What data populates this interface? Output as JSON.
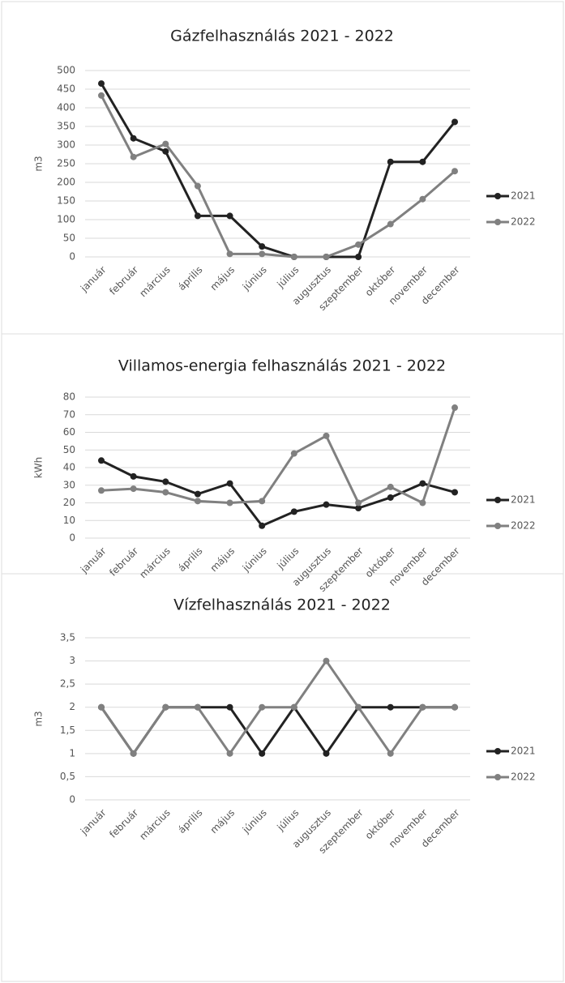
{
  "chart_data": [
    {
      "type": "line",
      "title": "Gázfelhasználás 2021 - 2022",
      "y_label": "m3",
      "categories": [
        "január",
        "február",
        "március",
        "április",
        "május",
        "június",
        "július",
        "augusztus",
        "szeptember",
        "október",
        "november",
        "december"
      ],
      "series": [
        {
          "name": "2021",
          "color": "#222222",
          "values": [
            465,
            318,
            283,
            110,
            110,
            28,
            0,
            0,
            0,
            255,
            255,
            362
          ]
        },
        {
          "name": "2022",
          "color": "#808080",
          "values": [
            433,
            268,
            303,
            190,
            8,
            8,
            0,
            0,
            33,
            88,
            155,
            230
          ]
        }
      ],
      "ylim": [
        0,
        500
      ],
      "yticks": [
        0,
        50,
        100,
        150,
        200,
        250,
        300,
        350,
        400,
        450,
        500
      ],
      "grid": true,
      "legend": "right"
    },
    {
      "type": "line",
      "title": "Villamos-energia felhasználás 2021 - 2022",
      "y_label": "kWh",
      "categories": [
        "január",
        "február",
        "március",
        "április",
        "május",
        "június",
        "július",
        "augusztus",
        "szeptember",
        "október",
        "november",
        "december"
      ],
      "series": [
        {
          "name": "2021",
          "color": "#222222",
          "values": [
            44,
            35,
            32,
            25,
            31,
            7,
            15,
            19,
            17,
            23,
            31,
            26
          ]
        },
        {
          "name": "2022",
          "color": "#808080",
          "values": [
            27,
            28,
            26,
            21,
            20,
            21,
            48,
            58,
            20,
            29,
            20,
            74
          ]
        }
      ],
      "ylim": [
        0,
        80
      ],
      "yticks": [
        0,
        10,
        20,
        30,
        40,
        50,
        60,
        70,
        80
      ],
      "grid": true,
      "legend": "right"
    },
    {
      "type": "line",
      "title": "Vízfelhasználás 2021 - 2022",
      "y_label": "m3",
      "categories": [
        "január",
        "február",
        "március",
        "április",
        "május",
        "június",
        "július",
        "augusztus",
        "szeptember",
        "október",
        "november",
        "december"
      ],
      "series": [
        {
          "name": "2021",
          "color": "#222222",
          "values": [
            2,
            1,
            2,
            2,
            2,
            1,
            2,
            1,
            2,
            2,
            2,
            2
          ]
        },
        {
          "name": "2022",
          "color": "#808080",
          "values": [
            2,
            1,
            2,
            2,
            1,
            2,
            2,
            3,
            2,
            1,
            2,
            2
          ]
        }
      ],
      "ylim": [
        0,
        3.5
      ],
      "yticks": [
        0,
        {
          "value": 0.5,
          "label": "0,5"
        },
        1,
        {
          "value": 1.5,
          "label": "1,5"
        },
        2,
        {
          "value": 2.5,
          "label": "2,5"
        },
        3,
        {
          "value": 3.5,
          "label": "3,5"
        }
      ],
      "grid": true,
      "legend": "right"
    }
  ]
}
